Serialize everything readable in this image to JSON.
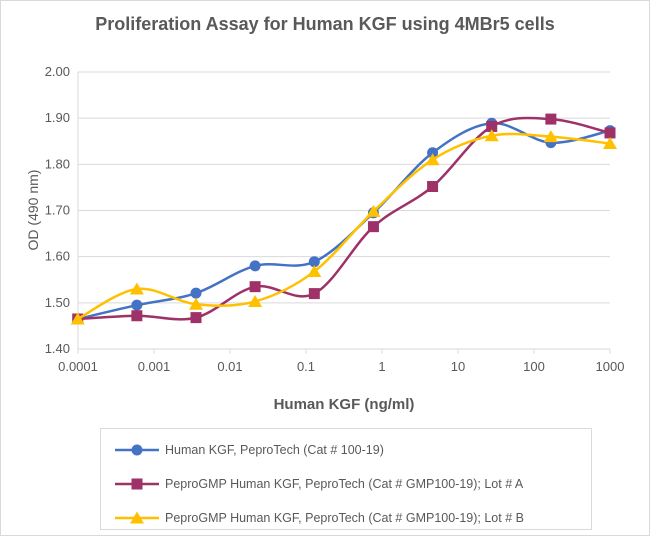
{
  "chart_data": {
    "type": "line",
    "title": "Proliferation Assay for Human KGF using 4MBr5 cells",
    "xlabel": "Human KGF (ng/ml)",
    "ylabel": "OD (490 nm)",
    "xscale": "log",
    "xlim": [
      0.0001,
      1000
    ],
    "ylim": [
      1.4,
      2.0
    ],
    "x_ticks": [
      "0.0001",
      "0.001",
      "0.01",
      "0.1",
      "1",
      "10",
      "100",
      "1000"
    ],
    "y_ticks": [
      "1.40",
      "1.50",
      "1.60",
      "1.70",
      "1.80",
      "1.90",
      "2.00"
    ],
    "grid": "horizontal",
    "legend_position": "bottom",
    "x": [
      9.92e-05,
      0.000595,
      0.00357,
      0.0214,
      0.1286,
      0.772,
      4.63,
      27.78,
      166.7,
      1000
    ],
    "series": [
      {
        "name": "Human KGF, PeproTech (Cat # 100-19)",
        "color": "#4472C4",
        "marker": "circle",
        "values": [
          1.465,
          1.495,
          1.521,
          1.58,
          1.589,
          1.695,
          1.825,
          1.889,
          1.847,
          1.873
        ]
      },
      {
        "name": "PeproGMP Human KGF, PeproTech (Cat # GMP100-19); Lot # A",
        "color": "#9E3268",
        "marker": "square",
        "values": [
          1.465,
          1.472,
          1.468,
          1.535,
          1.52,
          1.665,
          1.752,
          1.882,
          1.898,
          1.868
        ]
      },
      {
        "name": "PeproGMP Human KGF, PeproTech (Cat # GMP100-19); Lot # B",
        "color": "#FFC000",
        "marker": "triangle",
        "values": [
          1.465,
          1.53,
          1.497,
          1.503,
          1.568,
          1.698,
          1.81,
          1.862,
          1.86,
          1.845
        ]
      }
    ]
  }
}
